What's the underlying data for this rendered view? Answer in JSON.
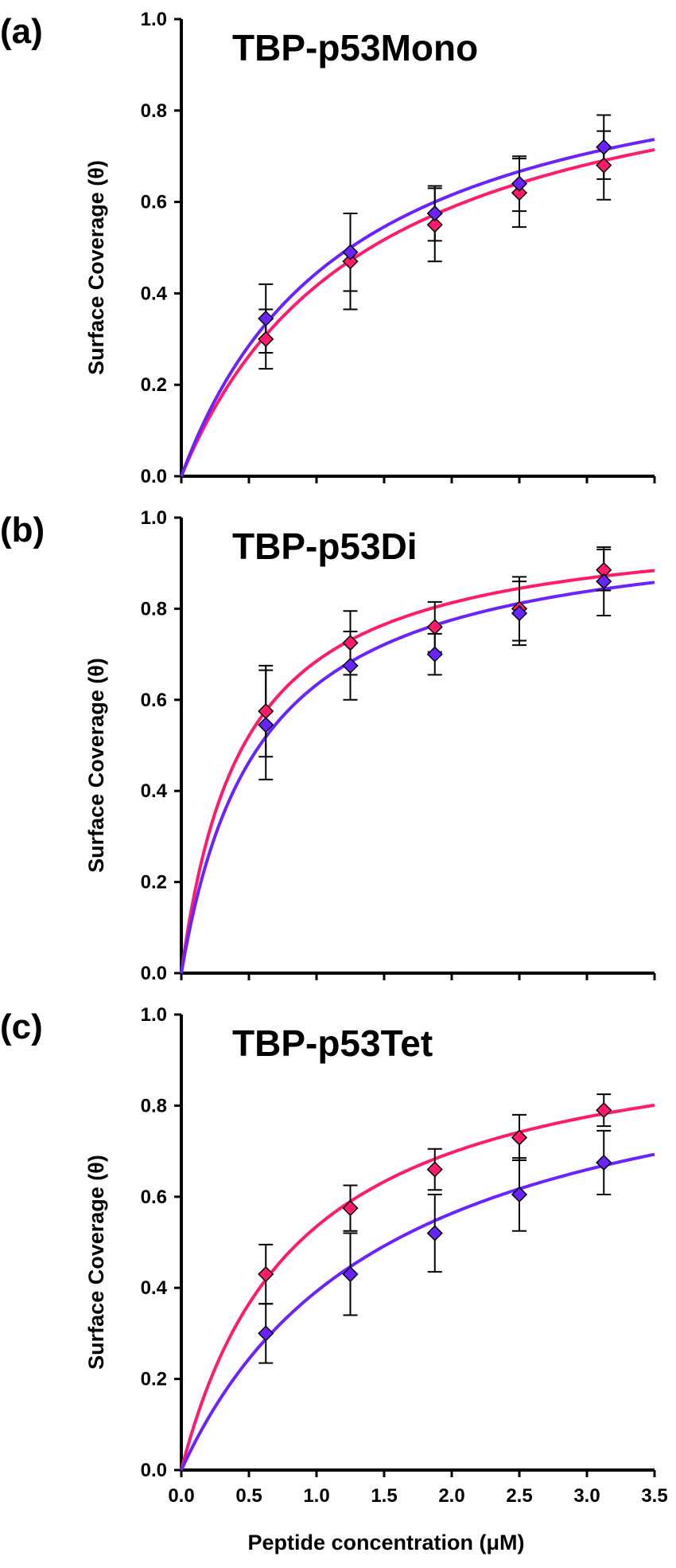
{
  "colors": {
    "magenta": "#ff1a6e",
    "purple": "#6a22ff",
    "axis": "#000000"
  },
  "chart_data": [
    {
      "type": "scatter",
      "panel_label": "(a)",
      "title": "TBP-p53Mono",
      "ylabel": "Surface Coverage (θ)",
      "xlabel": "",
      "xlim": [
        0,
        3.5
      ],
      "ylim": [
        0,
        1.0
      ],
      "x_ticks": [
        "0.0",
        "0.5",
        "1.0",
        "1.5",
        "2.0",
        "2.5",
        "3.0",
        "3.5"
      ],
      "y_ticks": [
        "0.0",
        "0.2",
        "0.4",
        "0.6",
        "0.8",
        "1.0"
      ],
      "series": [
        {
          "color": "magenta",
          "x": [
            0.625,
            1.25,
            1.875,
            2.5,
            3.125
          ],
          "y": [
            0.3,
            0.47,
            0.55,
            0.62,
            0.68
          ],
          "err": [
            0.065,
            0.105,
            0.08,
            0.075,
            0.075
          ],
          "fit": {
            "bmax": 1.0,
            "kd": 1.4
          }
        },
        {
          "color": "purple",
          "x": [
            0.625,
            1.25,
            1.875,
            2.5,
            3.125
          ],
          "y": [
            0.345,
            0.49,
            0.575,
            0.64,
            0.72
          ],
          "err": [
            0.075,
            0.085,
            0.06,
            0.06,
            0.07
          ],
          "fit": {
            "bmax": 1.0,
            "kd": 1.25
          }
        }
      ]
    },
    {
      "type": "scatter",
      "panel_label": "(b)",
      "title": "TBP-p53Di",
      "ylabel": "Surface Coverage (θ)",
      "xlabel": "",
      "xlim": [
        0,
        3.5
      ],
      "ylim": [
        0,
        1.0
      ],
      "x_ticks": [
        "0.0",
        "0.5",
        "1.0",
        "1.5",
        "2.0",
        "2.5",
        "3.0",
        "3.5"
      ],
      "y_ticks": [
        "0.0",
        "0.2",
        "0.4",
        "0.6",
        "0.8",
        "1.0"
      ],
      "series": [
        {
          "color": "magenta",
          "x": [
            0.625,
            1.25,
            1.875,
            2.5,
            3.125
          ],
          "y": [
            0.575,
            0.725,
            0.76,
            0.8,
            0.885
          ],
          "err": [
            0.1,
            0.07,
            0.055,
            0.07,
            0.045
          ],
          "fit": {
            "bmax": 1.0,
            "kd": 0.46
          }
        },
        {
          "color": "purple",
          "x": [
            0.625,
            1.25,
            1.875,
            2.5,
            3.125
          ],
          "y": [
            0.545,
            0.675,
            0.7,
            0.79,
            0.86
          ],
          "err": [
            0.12,
            0.075,
            0.045,
            0.07,
            0.075
          ],
          "fit": {
            "bmax": 1.0,
            "kd": 0.58
          }
        }
      ]
    },
    {
      "type": "scatter",
      "panel_label": "(c)",
      "title": "TBP-p53Tet",
      "ylabel": "Surface Coverage (θ)",
      "xlabel": "Peptide concentration (μM)",
      "xlim": [
        0,
        3.5
      ],
      "ylim": [
        0,
        1.0
      ],
      "x_ticks": [
        "0.0",
        "0.5",
        "1.0",
        "1.5",
        "2.0",
        "2.5",
        "3.0",
        "3.5"
      ],
      "y_ticks": [
        "0.0",
        "0.2",
        "0.4",
        "0.6",
        "0.8",
        "1.0"
      ],
      "series": [
        {
          "color": "magenta",
          "x": [
            0.625,
            1.25,
            1.875,
            2.5,
            3.125
          ],
          "y": [
            0.43,
            0.575,
            0.66,
            0.73,
            0.79
          ],
          "err": [
            0.065,
            0.05,
            0.045,
            0.05,
            0.035
          ],
          "fit": {
            "bmax": 1.0,
            "kd": 0.87
          }
        },
        {
          "color": "purple",
          "x": [
            0.625,
            1.25,
            1.875,
            2.5,
            3.125
          ],
          "y": [
            0.3,
            0.43,
            0.52,
            0.605,
            0.675
          ],
          "err": [
            0.065,
            0.09,
            0.085,
            0.08,
            0.07
          ],
          "fit": {
            "bmax": 1.0,
            "kd": 1.55
          }
        }
      ]
    }
  ]
}
